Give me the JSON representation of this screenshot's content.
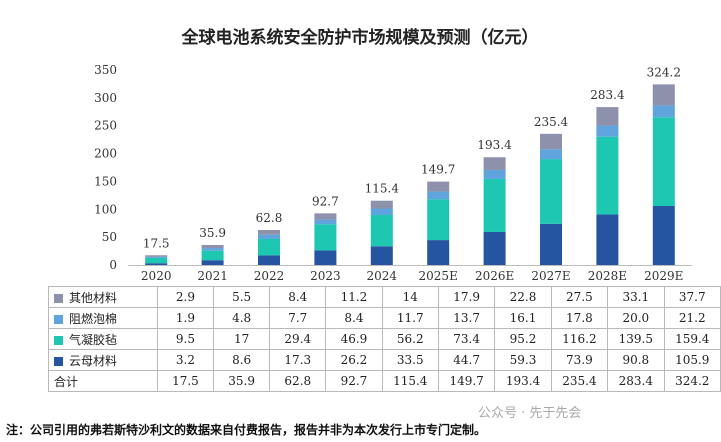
{
  "chart_data": {
    "type": "bar",
    "stacked": true,
    "title": "全球电池系统安全防护市场规模及预测（亿元）",
    "categories": [
      "2020",
      "2021",
      "2022",
      "2023",
      "2024",
      "2025E",
      "2026E",
      "2027E",
      "2028E",
      "2029E"
    ],
    "ylim": [
      0,
      350
    ],
    "yticks": [
      "0",
      "50",
      "100",
      "150",
      "200",
      "250",
      "300",
      "350"
    ],
    "grid": false,
    "series": [
      {
        "name": "云母材料",
        "color": "#2554a0",
        "values": [
          3.2,
          8.6,
          17.3,
          26.2,
          33.5,
          44.7,
          59.3,
          73.9,
          90.8,
          105.9
        ],
        "labels": [
          "3.2",
          "8.6",
          "17.3",
          "26.2",
          "33.5",
          "44.7",
          "59.3",
          "73.9",
          "90.8",
          "105.9"
        ]
      },
      {
        "name": "气凝胶毡",
        "color": "#1dc7b2",
        "values": [
          9.5,
          17,
          29.4,
          46.9,
          56.2,
          73.4,
          95.2,
          116.2,
          139.5,
          159.4
        ],
        "labels": [
          "9.5",
          "17",
          "29.4",
          "46.9",
          "56.2",
          "73.4",
          "95.2",
          "116.2",
          "139.5",
          "159.4"
        ]
      },
      {
        "name": "阻燃泡棉",
        "color": "#5fa4dc",
        "values": [
          1.9,
          4.8,
          7.7,
          8.4,
          11.7,
          13.7,
          16.1,
          17.8,
          20.0,
          21.2
        ],
        "labels": [
          "1.9",
          "4.8",
          "7.7",
          "8.4",
          "11.7",
          "13.7",
          "16.1",
          "17.8",
          "20.0",
          "21.2"
        ]
      },
      {
        "name": "其他材料",
        "color": "#8d91ab",
        "values": [
          2.9,
          5.5,
          8.4,
          11.2,
          14,
          17.9,
          22.8,
          27.5,
          33.1,
          37.7
        ],
        "labels": [
          "2.9",
          "5.5",
          "8.4",
          "11.2",
          "14",
          "17.9",
          "22.8",
          "27.5",
          "33.1",
          "37.7"
        ]
      }
    ],
    "totals": [
      17.5,
      35.9,
      62.8,
      92.7,
      115.4,
      149.7,
      193.4,
      235.4,
      283.4,
      324.2
    ],
    "total_labels": [
      "17.5",
      "35.9",
      "62.8",
      "92.7",
      "115.4",
      "149.7",
      "193.4",
      "235.4",
      "283.4",
      "324.2"
    ],
    "total_row_label": "合计"
  },
  "footnote": "注：公司引用的弗若斯特沙利文的数据来自付费报告，报告并非为本次发行上市专门定制。",
  "watermark": "公众号 · 先于先会"
}
